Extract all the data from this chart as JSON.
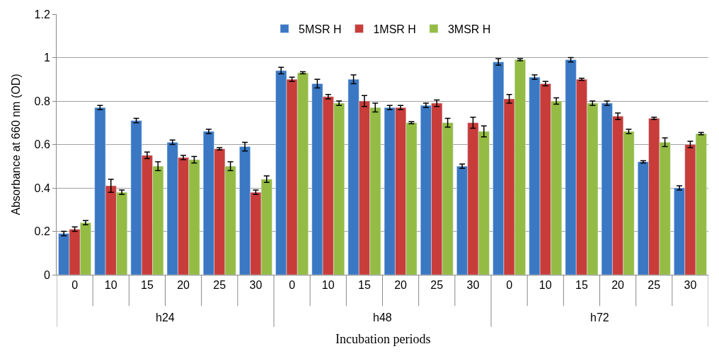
{
  "chart_data": {
    "type": "bar",
    "xlabel": "Incubation periods",
    "ylabel": "Absorbance at 660 nm (OD)",
    "categories": [
      "0",
      "10",
      "15",
      "20",
      "25",
      "30",
      "0",
      "10",
      "15",
      "20",
      "25",
      "30",
      "0",
      "10",
      "15",
      "20",
      "25",
      "30"
    ],
    "annotations": [
      "h24",
      "h48",
      "h72"
    ],
    "series": [
      {
        "name": "5MSR H",
        "color": "#3a78c4",
        "values": [
          0.19,
          0.77,
          0.71,
          0.61,
          0.66,
          0.59,
          0.94,
          0.88,
          0.9,
          0.77,
          0.78,
          0.5,
          0.98,
          0.91,
          0.99,
          0.79,
          0.52,
          0.4
        ],
        "errors": [
          0.01,
          0.01,
          0.01,
          0.01,
          0.01,
          0.02,
          0.015,
          0.02,
          0.02,
          0.01,
          0.01,
          0.01,
          0.015,
          0.01,
          0.01,
          0.01,
          0.005,
          0.01
        ]
      },
      {
        "name": "1MSR H",
        "color": "#c83c3a",
        "values": [
          0.21,
          0.41,
          0.55,
          0.54,
          0.58,
          0.38,
          0.9,
          0.82,
          0.8,
          0.77,
          0.79,
          0.7,
          0.81,
          0.88,
          0.9,
          0.73,
          0.72,
          0.6
        ],
        "errors": [
          0.01,
          0.03,
          0.015,
          0.01,
          0.005,
          0.01,
          0.01,
          0.01,
          0.025,
          0.01,
          0.015,
          0.025,
          0.02,
          0.01,
          0.005,
          0.015,
          0.005,
          0.015
        ]
      },
      {
        "name": "3MSR H",
        "color": "#94bc44",
        "values": [
          0.24,
          0.38,
          0.5,
          0.53,
          0.5,
          0.44,
          0.93,
          0.79,
          0.77,
          0.7,
          0.7,
          0.66,
          0.99,
          0.8,
          0.79,
          0.66,
          0.61,
          0.65
        ],
        "errors": [
          0.01,
          0.01,
          0.02,
          0.015,
          0.02,
          0.015,
          0.005,
          0.01,
          0.02,
          0.005,
          0.02,
          0.025,
          0.005,
          0.015,
          0.01,
          0.01,
          0.02,
          0.005
        ]
      }
    ],
    "ylim": [
      0,
      1.2
    ],
    "yticks": [
      0,
      0.2,
      0.4,
      0.6,
      0.8,
      1,
      1.2
    ],
    "grid": "y",
    "legend": "top"
  }
}
